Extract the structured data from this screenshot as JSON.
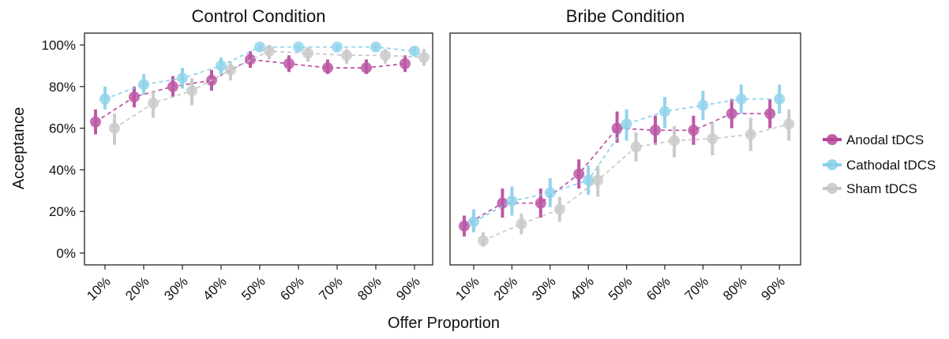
{
  "chart_data": [
    {
      "type": "line",
      "title": "Control Condition",
      "xlabel": "Offer Proportion",
      "ylabel": "Acceptance",
      "categories": [
        "10%",
        "20%",
        "30%",
        "40%",
        "50%",
        "60%",
        "70%",
        "80%",
        "90%"
      ],
      "y_tick_labels": [
        "0%",
        "20%",
        "40%",
        "60%",
        "80%",
        "100%"
      ],
      "ylim": [
        0,
        100
      ],
      "grid": false,
      "legend_position": "right",
      "series": [
        {
          "name": "Anodal tDCS",
          "color": "#b5479c",
          "values": [
            63,
            75,
            80,
            83,
            93,
            91,
            89,
            89,
            91
          ],
          "ci_low": [
            57,
            70,
            75,
            78,
            89,
            87,
            86,
            86,
            87
          ],
          "ci_high": [
            69,
            80,
            85,
            88,
            97,
            95,
            93,
            93,
            95
          ]
        },
        {
          "name": "Cathodal tDCS",
          "color": "#87d0ea",
          "values": [
            74,
            81,
            84,
            90,
            99,
            99,
            99,
            99,
            97
          ],
          "ci_low": [
            69,
            76,
            79,
            86,
            97,
            97,
            97,
            97,
            95
          ],
          "ci_high": [
            80,
            86,
            89,
            94,
            100,
            100,
            100,
            100,
            99
          ]
        },
        {
          "name": "Sham tDCS",
          "color": "#c6c6c6",
          "values": [
            60,
            72,
            78,
            88,
            97,
            96,
            95,
            95,
            94
          ],
          "ci_low": [
            52,
            65,
            71,
            83,
            93,
            92,
            91,
            91,
            90
          ],
          "ci_high": [
            67,
            78,
            84,
            92,
            100,
            99,
            98,
            98,
            98
          ]
        }
      ]
    },
    {
      "type": "line",
      "title": "Bribe Condition",
      "xlabel": "Offer Proportion",
      "ylabel": "Acceptance",
      "categories": [
        "10%",
        "20%",
        "30%",
        "40%",
        "50%",
        "60%",
        "70%",
        "80%",
        "90%"
      ],
      "ylim": [
        0,
        100
      ],
      "grid": false,
      "legend_position": "right",
      "series": [
        {
          "name": "Anodal tDCS",
          "color": "#b5479c",
          "values": [
            13,
            24,
            24,
            38,
            60,
            59,
            59,
            67,
            67
          ],
          "ci_low": [
            8,
            17,
            17,
            31,
            53,
            52,
            52,
            60,
            60
          ],
          "ci_high": [
            18,
            31,
            31,
            45,
            68,
            66,
            66,
            74,
            74
          ]
        },
        {
          "name": "Cathodal tDCS",
          "color": "#87d0ea",
          "values": [
            15,
            25,
            29,
            35,
            62,
            68,
            71,
            74,
            74
          ],
          "ci_low": [
            10,
            18,
            22,
            28,
            54,
            60,
            64,
            67,
            67
          ],
          "ci_high": [
            21,
            32,
            36,
            42,
            69,
            75,
            78,
            81,
            81
          ]
        },
        {
          "name": "Sham tDCS",
          "color": "#c6c6c6",
          "values": [
            6,
            14,
            21,
            35,
            51,
            54,
            55,
            57,
            62
          ],
          "ci_low": [
            3,
            9,
            15,
            27,
            44,
            46,
            47,
            49,
            54
          ],
          "ci_high": [
            10,
            19,
            27,
            42,
            58,
            61,
            63,
            65,
            69
          ]
        }
      ]
    }
  ],
  "legend": {
    "items": [
      "Anodal tDCS",
      "Cathodal tDCS",
      "Sham tDCS"
    ],
    "colors": [
      "#b5479c",
      "#87d0ea",
      "#c6c6c6"
    ],
    "position": "right"
  }
}
